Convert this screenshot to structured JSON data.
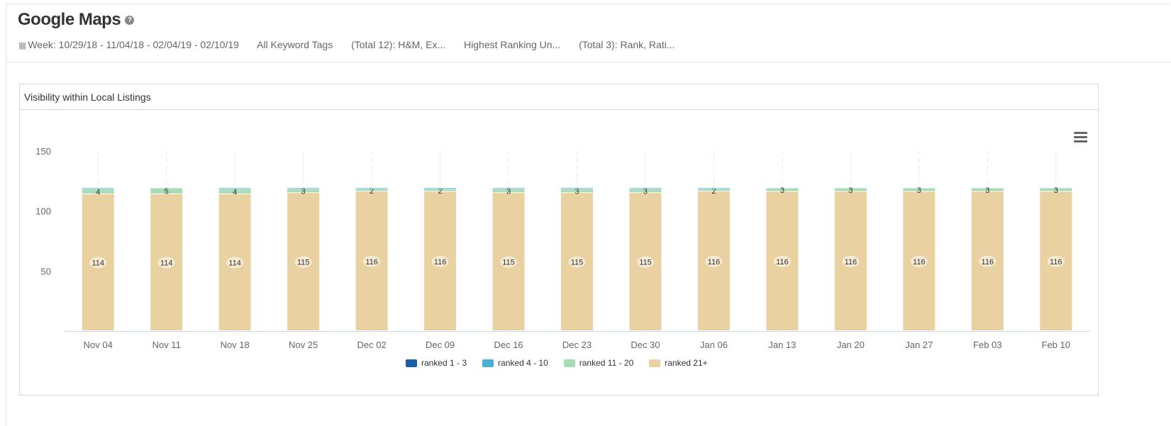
{
  "header": {
    "title": "Google Maps",
    "help_icon": "question-circle-icon",
    "filters": {
      "week": "Week: 10/29/18 - 11/04/18 - 02/04/19 - 02/10/19",
      "tags": "All Keyword Tags",
      "total_tags": "(Total 12): H&M, Ex...",
      "ranking": "Highest Ranking Un...",
      "total_rank": "(Total 3): Rank, Rati..."
    }
  },
  "panel": {
    "title": "Visibility within Local Listings",
    "menu_icon": "hamburger-menu-icon"
  },
  "chart_data": {
    "type": "bar",
    "stacked": true,
    "categories": [
      "Nov 04",
      "Nov 11",
      "Nov 18",
      "Nov 25",
      "Dec 02",
      "Dec 09",
      "Dec 16",
      "Dec 23",
      "Dec 30",
      "Jan 06",
      "Jan 13",
      "Jan 20",
      "Jan 27",
      "Feb 03",
      "Feb 10"
    ],
    "ylim": [
      0,
      150
    ],
    "yticks": [
      50,
      100,
      150
    ],
    "series": [
      {
        "name": "ranked 1 - 3",
        "color": "#1a5fa0",
        "values": [
          0,
          0,
          0,
          0,
          0,
          0,
          0,
          0,
          0,
          0,
          0,
          0,
          0,
          0,
          0
        ]
      },
      {
        "name": "ranked 4 - 10",
        "color": "#4bafd0",
        "values": [
          1,
          0,
          1,
          1,
          1,
          1,
          1,
          1,
          1,
          1,
          0,
          0,
          0,
          0,
          0
        ]
      },
      {
        "name": "ranked 11 - 20",
        "color": "#a8dcb4",
        "values": [
          4,
          5,
          4,
          3,
          2,
          2,
          3,
          3,
          3,
          2,
          3,
          3,
          3,
          3,
          3
        ]
      },
      {
        "name": "ranked 21+",
        "color": "#e9d1a1",
        "values": [
          114,
          114,
          114,
          115,
          116,
          116,
          115,
          115,
          115,
          116,
          116,
          116,
          116,
          116,
          116
        ]
      }
    ],
    "legend": "bottom",
    "grid": "vertical-dashed"
  }
}
